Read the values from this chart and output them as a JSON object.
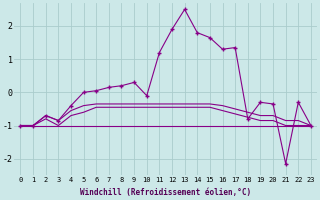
{
  "xlabel": "Windchill (Refroidissement éolien,°C)",
  "background_color": "#cce8e8",
  "grid_color": "#aacccc",
  "line_color": "#880088",
  "xlim": [
    -0.5,
    23.5
  ],
  "ylim": [
    -2.5,
    2.7
  ],
  "yticks": [
    -2,
    -1,
    0,
    1,
    2
  ],
  "xticks": [
    0,
    1,
    2,
    3,
    4,
    5,
    6,
    7,
    8,
    9,
    10,
    11,
    12,
    13,
    14,
    15,
    16,
    17,
    18,
    19,
    20,
    21,
    22,
    23
  ],
  "series": [
    {
      "y": [
        -1.0,
        -1.0,
        -1.0,
        -1.0,
        -1.0,
        -1.0,
        -1.0,
        -1.0,
        -1.0,
        -1.0,
        -1.0,
        -1.0,
        -1.0,
        -1.0,
        -1.0,
        -1.0,
        -1.0,
        -1.0,
        -1.0,
        -1.0,
        -1.0,
        -1.0,
        -1.0,
        -1.0
      ],
      "marker": false
    },
    {
      "y": [
        -1.0,
        -1.0,
        -0.8,
        -1.0,
        -0.7,
        -0.6,
        -0.45,
        -0.45,
        -0.45,
        -0.45,
        -0.45,
        -0.45,
        -0.45,
        -0.45,
        -0.45,
        -0.45,
        -0.55,
        -0.65,
        -0.75,
        -0.85,
        -0.85,
        -1.0,
        -1.0,
        -1.0
      ],
      "marker": false
    },
    {
      "y": [
        -1.0,
        -1.0,
        -0.7,
        -0.85,
        -0.55,
        -0.4,
        -0.35,
        -0.35,
        -0.35,
        -0.35,
        -0.35,
        -0.35,
        -0.35,
        -0.35,
        -0.35,
        -0.35,
        -0.4,
        -0.5,
        -0.6,
        -0.7,
        -0.7,
        -0.85,
        -0.85,
        -1.0
      ],
      "marker": false
    },
    {
      "y": [
        -1.0,
        -1.0,
        -0.7,
        -0.85,
        -0.4,
        0.0,
        0.05,
        0.15,
        0.2,
        0.3,
        -0.1,
        1.2,
        1.9,
        2.5,
        1.8,
        1.65,
        1.3,
        1.35,
        -0.8,
        -0.3,
        -0.35,
        -2.15,
        -0.3,
        -1.0
      ],
      "marker": true
    }
  ]
}
